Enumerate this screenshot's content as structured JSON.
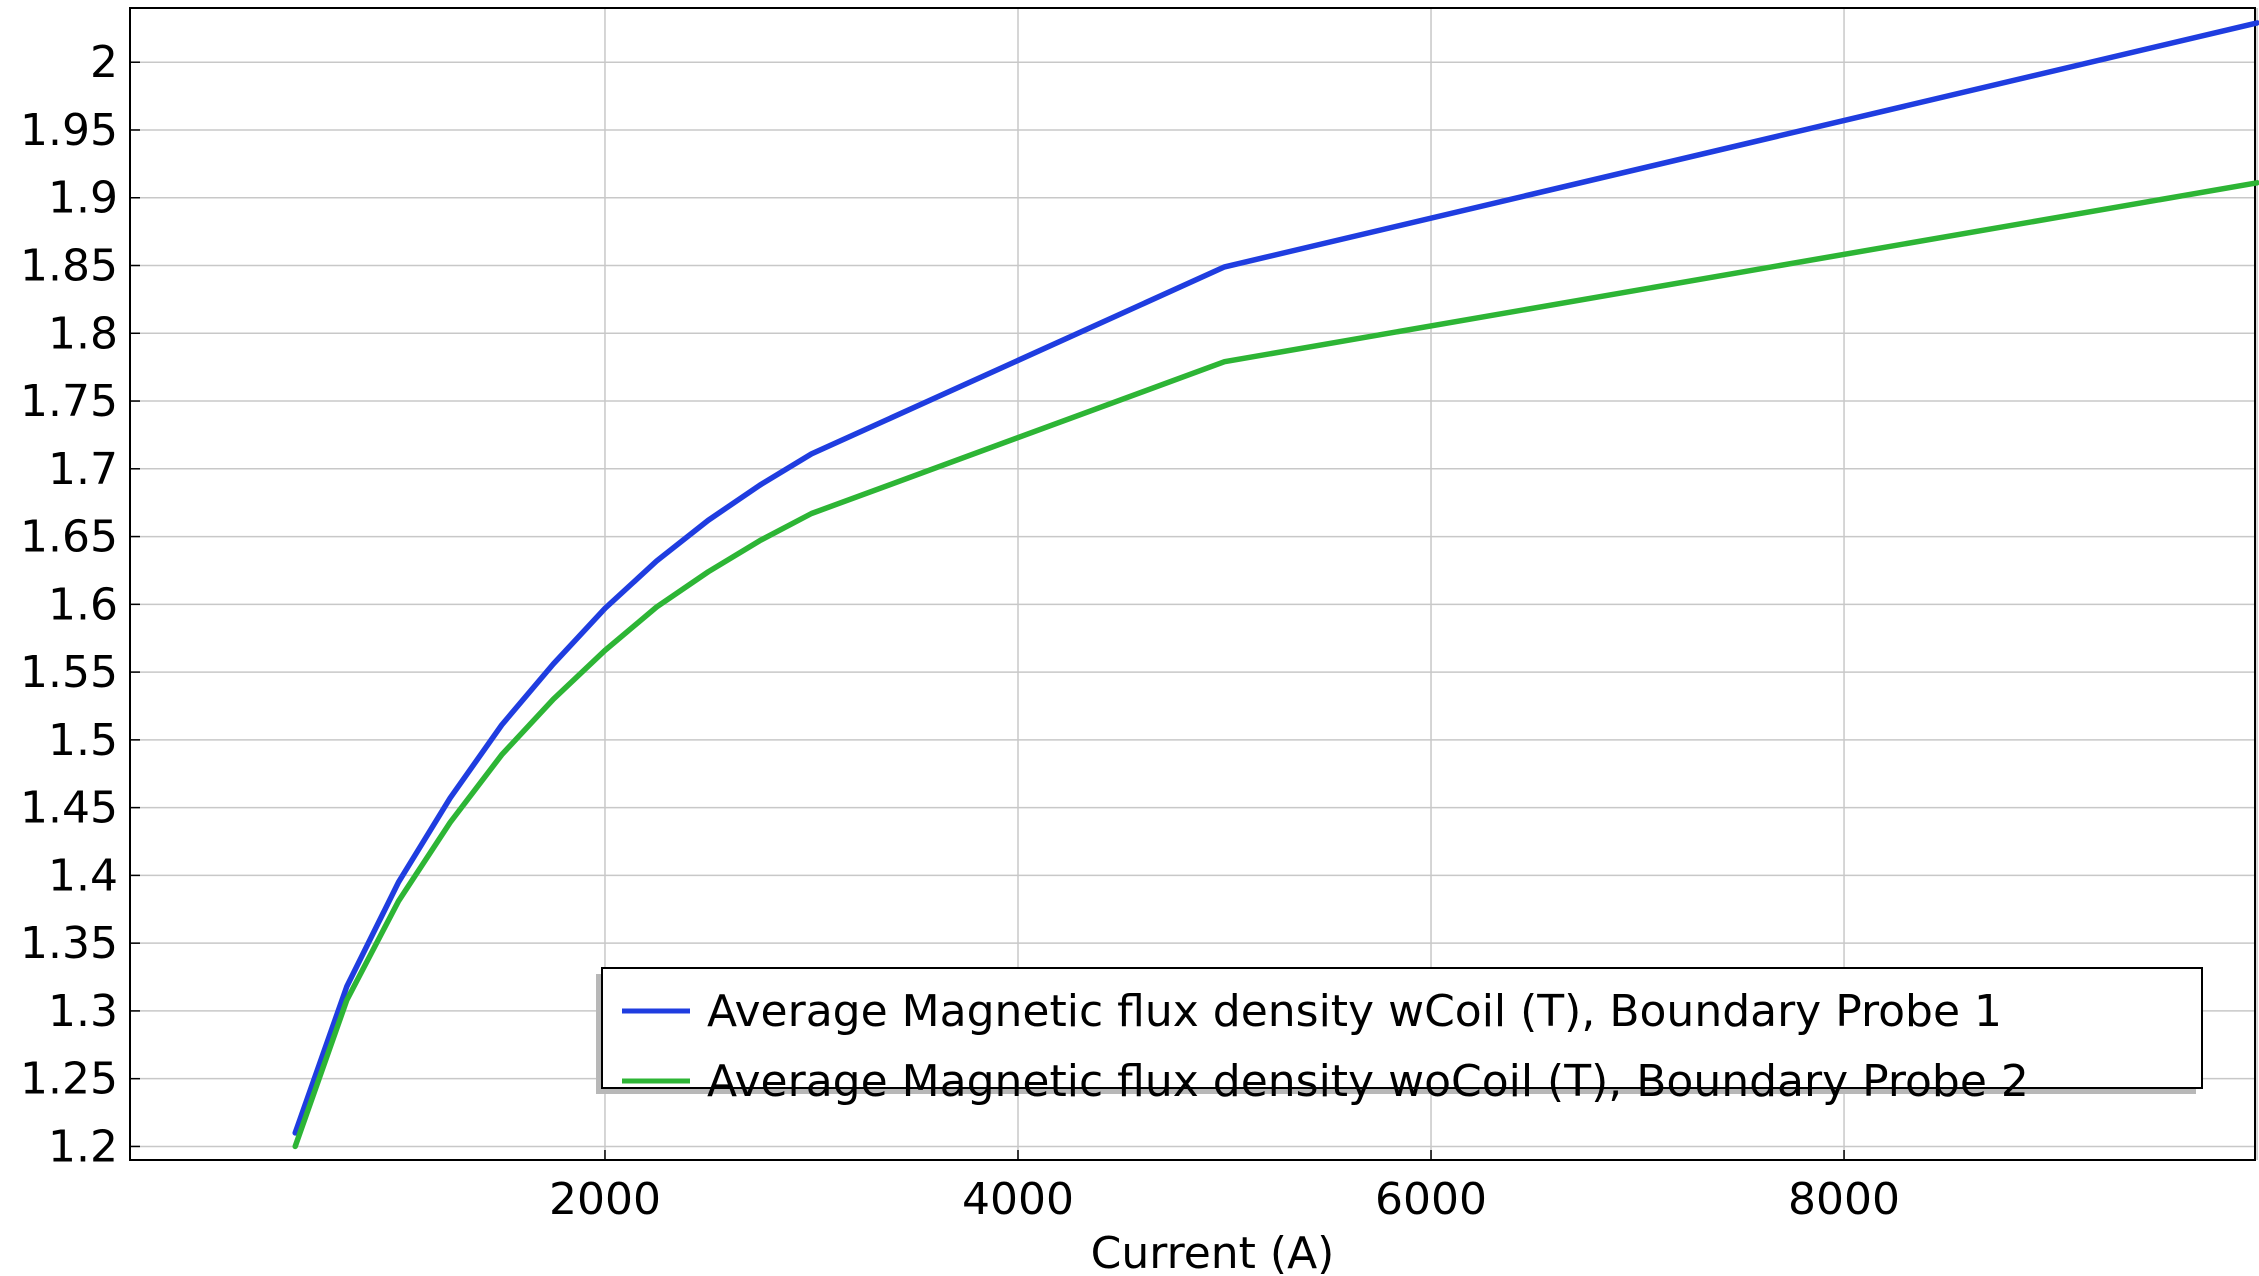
{
  "chart_data": {
    "type": "line",
    "title": "",
    "xlabel": "Current (A)",
    "ylabel": "",
    "xlim": [
      -300,
      9990
    ],
    "ylim": [
      1.19,
      2.04
    ],
    "xticks": [
      2000,
      4000,
      6000,
      8000
    ],
    "xtick_labels": [
      "2000",
      "4000",
      "6000",
      "8000"
    ],
    "yticks": [
      1.2,
      1.25,
      1.3,
      1.35,
      1.4,
      1.45,
      1.5,
      1.55,
      1.6,
      1.65,
      1.7,
      1.75,
      1.8,
      1.85,
      1.9,
      1.95,
      2.0
    ],
    "ytick_labels": [
      "1.2",
      "1.25",
      "1.3",
      "1.35",
      "1.4",
      "1.45",
      "1.5",
      "1.55",
      "1.6",
      "1.65",
      "1.7",
      "1.75",
      "1.8",
      "1.85",
      "1.9",
      "1.95",
      "2"
    ],
    "grid": true,
    "legend_position": "bottom-right",
    "series": [
      {
        "name": "Average Magnetic flux density wCoil (T), Boundary Probe 1",
        "color": "#1f3de0",
        "x": [
          500,
          750,
          1000,
          1250,
          1500,
          1750,
          2000,
          2250,
          2500,
          2750,
          3000,
          5000,
          10000
        ],
        "y": [
          1.21,
          1.318,
          1.395,
          1.457,
          1.511,
          1.556,
          1.597,
          1.632,
          1.662,
          1.688,
          1.711,
          1.849,
          2.029
        ]
      },
      {
        "name": "Average Magnetic flux density woCoil (T), Boundary Probe 2",
        "color": "#2db535",
        "x": [
          500,
          750,
          1000,
          1250,
          1500,
          1750,
          2000,
          2250,
          2500,
          2750,
          3000,
          5000,
          10000
        ],
        "y": [
          1.2,
          1.308,
          1.381,
          1.439,
          1.489,
          1.53,
          1.566,
          1.598,
          1.624,
          1.647,
          1.667,
          1.779,
          1.911
        ]
      }
    ]
  }
}
